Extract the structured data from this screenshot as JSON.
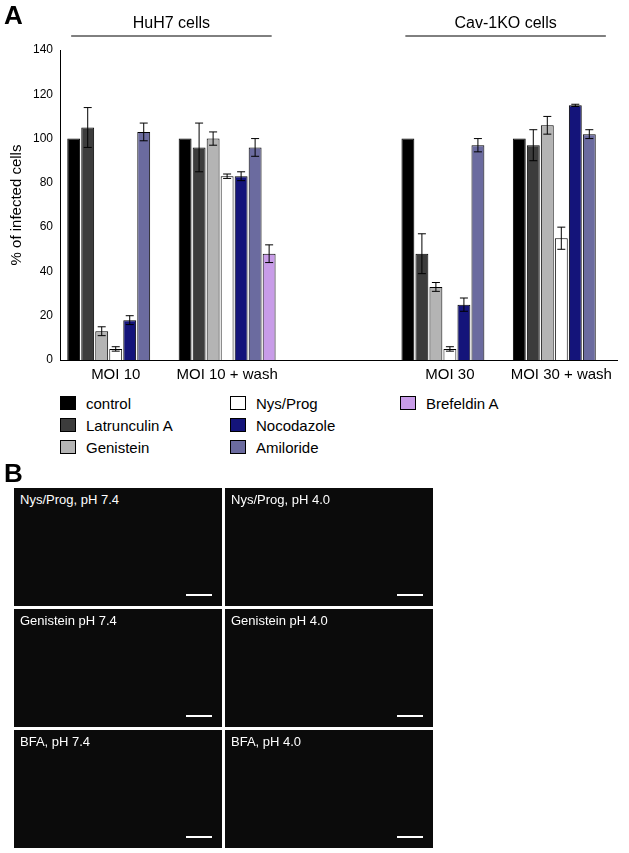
{
  "chart_data": {
    "type": "bar",
    "y_label": "% of infected cells",
    "categories": [
      "MOI 10",
      "MOI 10 + wash",
      null,
      "MOI 30",
      "MOI 30 + wash"
    ],
    "groups": [
      {
        "label": "HuH7 cells",
        "categories": [
          "MOI 10",
          "MOI 10 + wash"
        ]
      },
      {
        "label": "Cav-1KO cells",
        "categories": [
          "MOI 30",
          "MOI 30 + wash"
        ]
      }
    ],
    "series": [
      {
        "name": "control",
        "color": "#000000",
        "values": [
          100,
          100,
          null,
          100,
          100
        ],
        "errors": [
          null,
          null,
          null,
          null,
          null
        ]
      },
      {
        "name": "Latrunculin A",
        "color": "#3c3c3c",
        "values": [
          105,
          96,
          null,
          48,
          97
        ],
        "errors": [
          9,
          11,
          null,
          9,
          7
        ]
      },
      {
        "name": "Genistein",
        "color": "#b4b4b4",
        "values": [
          13,
          100,
          null,
          33,
          106
        ],
        "errors": [
          2,
          3,
          null,
          2,
          4
        ]
      },
      {
        "name": "Nys/Prog",
        "color": "#ffffff",
        "values": [
          5,
          83,
          null,
          5,
          55
        ],
        "errors": [
          1,
          1,
          null,
          1,
          5
        ]
      },
      {
        "name": "Nocodazole",
        "color": "#14147a",
        "values": [
          18,
          83,
          null,
          25,
          115
        ],
        "errors": [
          2,
          2,
          null,
          3,
          0.5
        ]
      },
      {
        "name": "Amiloride",
        "color": "#6b6b9f",
        "values": [
          103,
          96,
          null,
          97,
          102
        ],
        "errors": [
          4,
          4,
          null,
          3,
          2
        ]
      },
      {
        "name": "Brefeldin A",
        "color": "#c89ce8",
        "values": [
          null,
          48,
          null,
          null,
          null
        ],
        "errors": [
          null,
          4,
          null,
          null,
          null
        ]
      }
    ],
    "ylim": [
      0,
      140
    ],
    "yticks": [
      0,
      20,
      40,
      60,
      80,
      100,
      120,
      140
    ],
    "grid": false,
    "legend": "bottom"
  },
  "panel_labels": [
    "A",
    "B"
  ],
  "images": [
    "Nys/Prog, pH 7.4",
    "Nys/Prog, pH 4.0",
    "Genistein pH 7.4",
    "Genistein pH 4.0",
    "BFA, pH 7.4",
    "BFA, pH 4.0"
  ]
}
